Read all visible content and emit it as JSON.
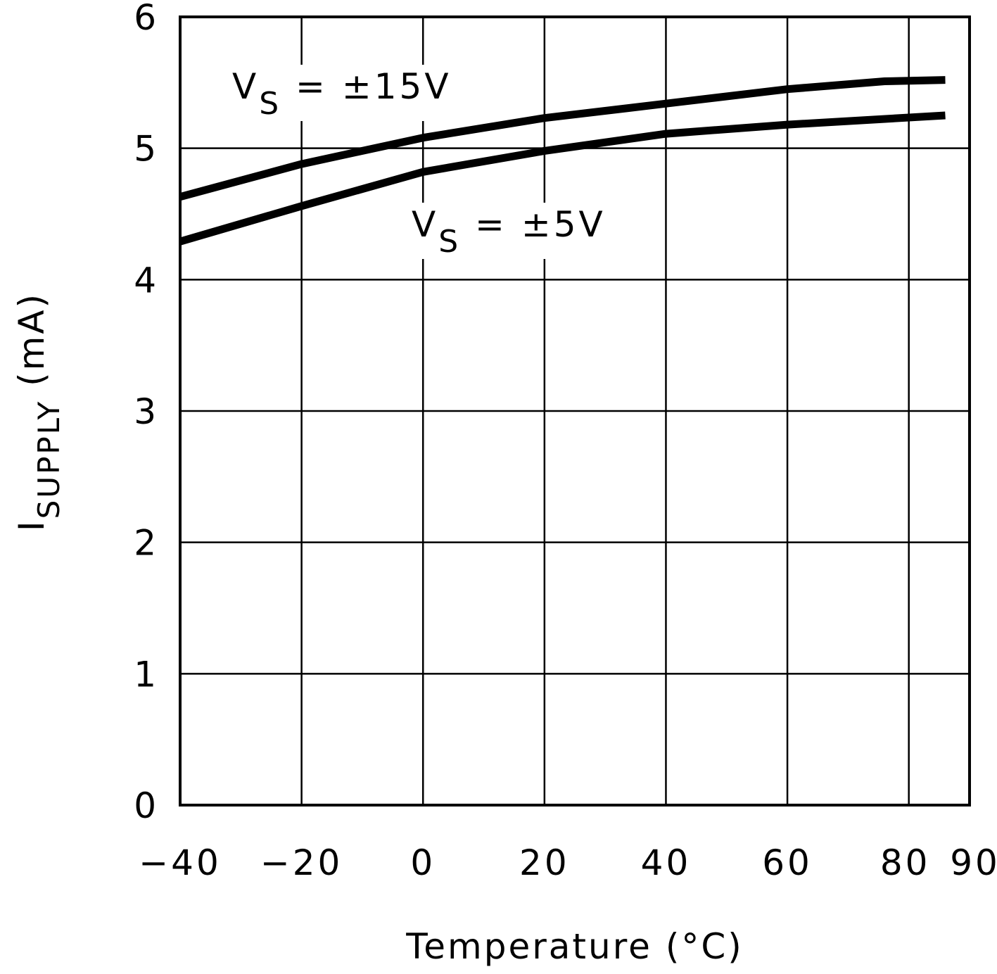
{
  "chart_data": {
    "type": "line",
    "title": "",
    "xlabel": "Temperature (°C)",
    "ylabel": {
      "main": "I",
      "sub": "SUPPLY",
      "unit": "(mA)"
    },
    "xlim": [
      -40,
      90
    ],
    "ylim": [
      0,
      6
    ],
    "xticks": [
      -40,
      -20,
      0,
      20,
      40,
      60,
      80,
      90
    ],
    "xtick_labels": [
      "−40",
      "−20",
      "0",
      "20",
      "40",
      "60",
      "80",
      "90"
    ],
    "yticks": [
      0,
      1,
      2,
      3,
      4,
      5,
      6
    ],
    "ytick_labels": [
      "0",
      "1",
      "2",
      "3",
      "4",
      "5",
      "6"
    ],
    "grid": true,
    "series": [
      {
        "name": {
          "main": "V",
          "sub": "S",
          "rest": " = ±15V"
        },
        "x": [
          -40,
          -20,
          0,
          20,
          40,
          60,
          76,
          86
        ],
        "y": [
          4.63,
          4.88,
          5.08,
          5.23,
          5.34,
          5.45,
          5.51,
          5.52
        ]
      },
      {
        "name": {
          "main": "V",
          "sub": "S",
          "rest": " = ±5V"
        },
        "x": [
          -40,
          -20,
          0,
          20,
          40,
          60,
          86
        ],
        "y": [
          4.29,
          4.56,
          4.82,
          4.98,
          5.11,
          5.18,
          5.25
        ]
      }
    ],
    "colors": {
      "line": "#000000",
      "grid": "#000000",
      "background": "#ffffff"
    }
  }
}
